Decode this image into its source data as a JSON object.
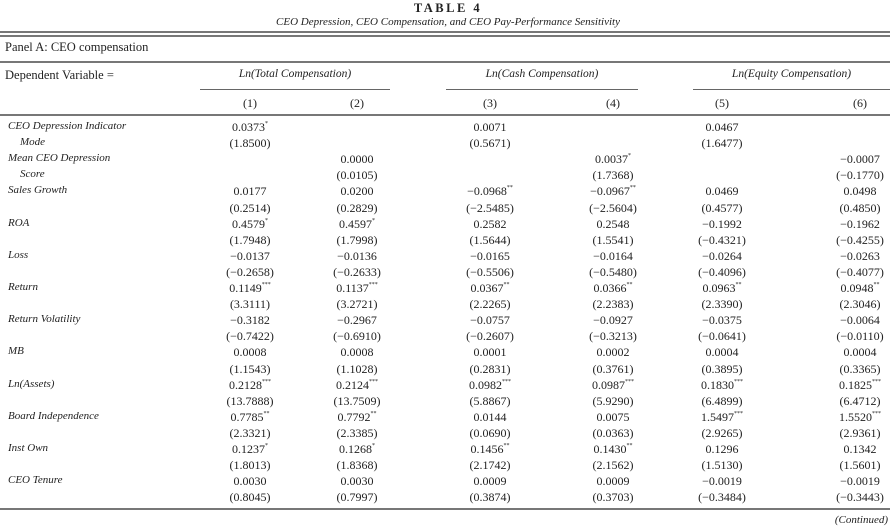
{
  "table": {
    "number": "TABLE 4",
    "title": "CEO Depression, CEO Compensation, and CEO Pay-Performance Sensitivity",
    "panel": "Panel A: CEO compensation",
    "dependent_variable_label": "Dependent Variable =",
    "groups": [
      "Ln(Total Compensation)",
      "Ln(Cash Compensation)",
      "Ln(Equity Compensation)"
    ],
    "columns": [
      "(1)",
      "(2)",
      "(3)",
      "(4)",
      "(5)",
      "(6)"
    ],
    "rows": [
      {
        "label": "CEO Depression Indicator",
        "label2": "Mode",
        "coef": [
          "0.0373",
          "",
          "0.0071",
          "",
          "0.0467",
          ""
        ],
        "stars": [
          "*",
          "",
          "",
          "",
          "",
          ""
        ],
        "t": [
          "(1.8500)",
          "",
          "(0.5671)",
          "",
          "(1.6477)",
          ""
        ]
      },
      {
        "label": "Mean CEO Depression",
        "label2": "Score",
        "coef": [
          "",
          "0.0000",
          "",
          "0.0037",
          "",
          "−0.0007"
        ],
        "stars": [
          "",
          "",
          "",
          "*",
          "",
          ""
        ],
        "t": [
          "",
          "(0.0105)",
          "",
          "(1.7368)",
          "",
          "(−0.1770)"
        ]
      },
      {
        "label": "Sales Growth",
        "label2": "",
        "coef": [
          "0.0177",
          "0.0200",
          "−0.0968",
          "−0.0967",
          "0.0469",
          "0.0498"
        ],
        "stars": [
          "",
          "",
          "**",
          "**",
          "",
          ""
        ],
        "t": [
          "(0.2514)",
          "(0.2829)",
          "(−2.5485)",
          "(−2.5604)",
          "(0.4577)",
          "(0.4850)"
        ]
      },
      {
        "label": "ROA",
        "label2": "",
        "coef": [
          "0.4579",
          "0.4597",
          "0.2582",
          "0.2548",
          "−0.1992",
          "−0.1962"
        ],
        "stars": [
          "*",
          "*",
          "",
          "",
          "",
          ""
        ],
        "t": [
          "(1.7948)",
          "(1.7998)",
          "(1.5644)",
          "(1.5541)",
          "(−0.4321)",
          "(−0.4255)"
        ]
      },
      {
        "label": "Loss",
        "label2": "",
        "coef": [
          "−0.0137",
          "−0.0136",
          "−0.0165",
          "−0.0164",
          "−0.0264",
          "−0.0263"
        ],
        "stars": [
          "",
          "",
          "",
          "",
          "",
          ""
        ],
        "t": [
          "(−0.2658)",
          "(−0.2633)",
          "(−0.5506)",
          "(−0.5480)",
          "(−0.4096)",
          "(−0.4077)"
        ]
      },
      {
        "label": "Return",
        "label2": "",
        "coef": [
          "0.1149",
          "0.1137",
          "0.0367",
          "0.0366",
          "0.0963",
          "0.0948"
        ],
        "stars": [
          "***",
          "***",
          "**",
          "**",
          "**",
          "**"
        ],
        "t": [
          "(3.3111)",
          "(3.2721)",
          "(2.2265)",
          "(2.2383)",
          "(2.3390)",
          "(2.3046)"
        ]
      },
      {
        "label": "Return Volatility",
        "label2": "",
        "coef": [
          "−0.3182",
          "−0.2967",
          "−0.0757",
          "−0.0927",
          "−0.0375",
          "−0.0064"
        ],
        "stars": [
          "",
          "",
          "",
          "",
          "",
          ""
        ],
        "t": [
          "(−0.7422)",
          "(−0.6910)",
          "(−0.2607)",
          "(−0.3213)",
          "(−0.0641)",
          "(−0.0110)"
        ]
      },
      {
        "label": "MB",
        "label2": "",
        "coef": [
          "0.0008",
          "0.0008",
          "0.0001",
          "0.0002",
          "0.0004",
          "0.0004"
        ],
        "stars": [
          "",
          "",
          "",
          "",
          "",
          ""
        ],
        "t": [
          "(1.1543)",
          "(1.1028)",
          "(0.2831)",
          "(0.3761)",
          "(0.3895)",
          "(0.3365)"
        ]
      },
      {
        "label": "Ln(Assets)",
        "label2": "",
        "coef": [
          "0.2128",
          "0.2124",
          "0.0982",
          "0.0987",
          "0.1830",
          "0.1825"
        ],
        "stars": [
          "***",
          "***",
          "***",
          "***",
          "***",
          "***"
        ],
        "t": [
          "(13.7888)",
          "(13.7509)",
          "(5.8867)",
          "(5.9290)",
          "(6.4899)",
          "(6.4712)"
        ]
      },
      {
        "label": "Board Independence",
        "label2": "",
        "coef": [
          "0.7785",
          "0.7792",
          "0.0144",
          "0.0075",
          "1.5497",
          "1.5520"
        ],
        "stars": [
          "**",
          "**",
          "",
          "",
          "***",
          "***"
        ],
        "t": [
          "(2.3321)",
          "(2.3385)",
          "(0.0690)",
          "(0.0363)",
          "(2.9265)",
          "(2.9361)"
        ]
      },
      {
        "label": "Inst Own",
        "label2": "",
        "coef": [
          "0.1237",
          "0.1268",
          "0.1456",
          "0.1430",
          "0.1296",
          "0.1342"
        ],
        "stars": [
          "*",
          "*",
          "**",
          "**",
          "",
          ""
        ],
        "t": [
          "(1.8013)",
          "(1.8368)",
          "(2.1742)",
          "(2.1562)",
          "(1.5130)",
          "(1.5601)"
        ]
      },
      {
        "label": "CEO Tenure",
        "label2": "",
        "coef": [
          "0.0030",
          "0.0030",
          "0.0009",
          "0.0009",
          "−0.0019",
          "−0.0019"
        ],
        "stars": [
          "",
          "",
          "",
          "",
          "",
          ""
        ],
        "t": [
          "(0.8045)",
          "(0.7997)",
          "(0.3874)",
          "(0.3703)",
          "(−0.3484)",
          "(−0.3443)"
        ]
      }
    ],
    "continued": "(Continued)"
  }
}
